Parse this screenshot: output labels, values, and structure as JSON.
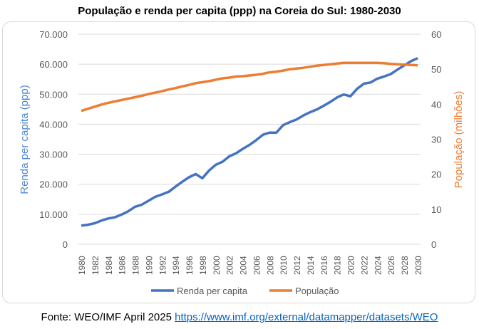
{
  "chart_data": {
    "type": "line",
    "title": "População e renda per capita (ppp) na Coreia do Sul: 1980-2030",
    "x": [
      1980,
      1981,
      1982,
      1983,
      1984,
      1985,
      1986,
      1987,
      1988,
      1989,
      1990,
      1991,
      1992,
      1993,
      1994,
      1995,
      1996,
      1997,
      1998,
      1999,
      2000,
      2001,
      2002,
      2003,
      2004,
      2005,
      2006,
      2007,
      2008,
      2009,
      2010,
      2011,
      2012,
      2013,
      2014,
      2015,
      2016,
      2017,
      2018,
      2019,
      2020,
      2021,
      2022,
      2023,
      2024,
      2025,
      2026,
      2027,
      2028,
      2029,
      2030
    ],
    "series": [
      {
        "name": "Renda per capita",
        "axis": "left",
        "color": "#4472c4",
        "values": [
          6200,
          6500,
          7000,
          7900,
          8600,
          9000,
          9900,
          11000,
          12500,
          13200,
          14500,
          15800,
          16600,
          17500,
          19200,
          20800,
          22300,
          23400,
          22000,
          24600,
          26500,
          27500,
          29300,
          30300,
          31800,
          33100,
          34700,
          36500,
          37200,
          37200,
          39700,
          40700,
          41600,
          42900,
          44000,
          44900,
          46100,
          47400,
          48900,
          49900,
          49300,
          51800,
          53500,
          53900,
          55200,
          55900,
          56700,
          58200,
          59600,
          61000,
          62000
        ]
      },
      {
        "name": "População",
        "axis": "right",
        "color": "#ed7d31",
        "values": [
          38.1,
          38.7,
          39.3,
          39.9,
          40.4,
          40.8,
          41.2,
          41.6,
          42.0,
          42.4,
          42.9,
          43.3,
          43.7,
          44.2,
          44.6,
          45.1,
          45.5,
          46.0,
          46.3,
          46.6,
          47.0,
          47.4,
          47.6,
          47.9,
          48.0,
          48.2,
          48.4,
          48.7,
          49.1,
          49.3,
          49.6,
          50.0,
          50.2,
          50.4,
          50.7,
          51.0,
          51.2,
          51.4,
          51.6,
          51.8,
          51.8,
          51.8,
          51.8,
          51.8,
          51.8,
          51.7,
          51.5,
          51.4,
          51.3,
          51.2,
          51.1
        ]
      }
    ],
    "ylabel": "Renda per capita (ppp)",
    "y2label": "População (milhões)",
    "ylim": [
      0,
      70000
    ],
    "y2lim": [
      0,
      60
    ],
    "yticks": [
      "0",
      "10.000",
      "20.000",
      "30.000",
      "40.000",
      "50.000",
      "60.000",
      "70.000"
    ],
    "y2ticks": [
      "0",
      "10",
      "20",
      "30",
      "40",
      "50",
      "60"
    ],
    "xticks": [
      "1980",
      "1982",
      "1984",
      "1986",
      "1988",
      "1990",
      "1992",
      "1994",
      "1996",
      "1998",
      "2000",
      "2002",
      "2004",
      "2006",
      "2008",
      "2010",
      "2012",
      "2014",
      "2016",
      "2018",
      "2020",
      "2022",
      "2024",
      "2026",
      "2028",
      "2030"
    ],
    "grid": true,
    "legend": "bottom"
  },
  "footer": {
    "source": "Fonte: WEO/IMF April 2025 ",
    "link": "https://www.imf.org/external/datamapper/datasets/WEO"
  }
}
